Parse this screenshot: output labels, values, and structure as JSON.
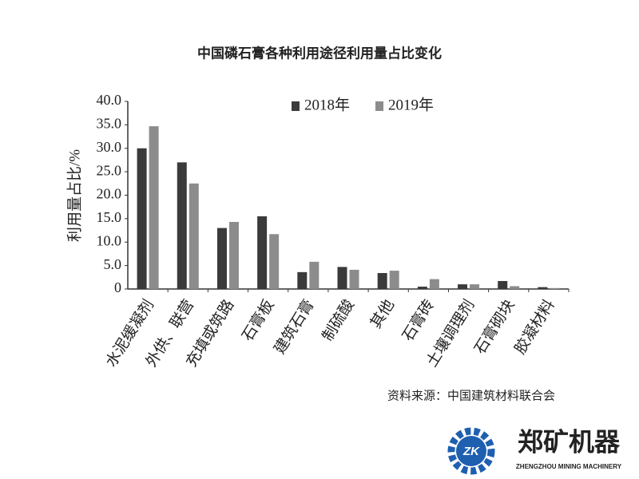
{
  "chart_data": {
    "type": "bar",
    "title": "中国磷石膏各种利用途径利用量占比变化",
    "ylabel": "利用量占比/%",
    "categories": [
      "水泥缓凝剂",
      "外供、联营",
      "充填或筑路",
      "石膏板",
      "建筑石膏",
      "制硫酸",
      "其他",
      "石膏砖",
      "土壤调理剂",
      "石膏砌块",
      "胶凝材料"
    ],
    "series": [
      {
        "name": "2018年",
        "color": "#3a3a3a",
        "values": [
          30.0,
          27.0,
          13.0,
          15.5,
          3.6,
          4.7,
          3.4,
          0.5,
          1.0,
          1.7,
          0.4
        ]
      },
      {
        "name": "2019年",
        "color": "#8c8c8c",
        "values": [
          34.7,
          22.5,
          14.3,
          11.7,
          5.8,
          4.1,
          3.9,
          2.1,
          1.0,
          0.6,
          0.2
        ]
      }
    ],
    "ylim": [
      0,
      40
    ],
    "yticks": [
      0,
      {
        "value": 5,
        "label": "5.0"
      },
      {
        "value": 10,
        "label": "10.0"
      },
      {
        "value": 15,
        "label": "15.0"
      },
      {
        "value": 20,
        "label": "20.0"
      },
      {
        "value": 25,
        "label": "25.0"
      },
      {
        "value": 30,
        "label": "30.0"
      },
      {
        "value": 35,
        "label": "35.0"
      },
      {
        "value": 40,
        "label": "40.0"
      }
    ],
    "legend": "top",
    "source": "资料来源：中国建筑材料联合会"
  },
  "logo": {
    "mark": "ZK",
    "name": "郑矿机器",
    "subtitle": "ZHENGZHOU MINING MACHINERY"
  }
}
